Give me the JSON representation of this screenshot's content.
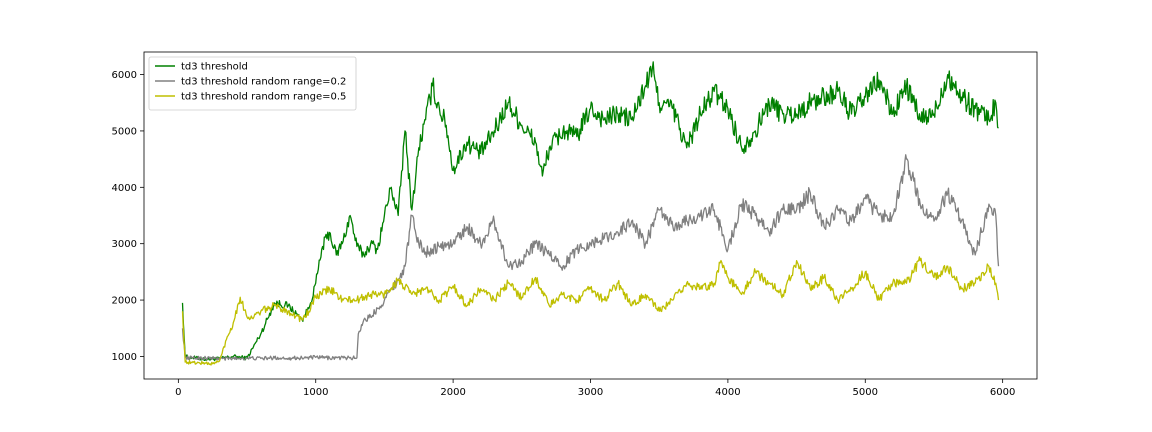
{
  "chart_data": {
    "type": "line",
    "title": "",
    "xlabel": "",
    "ylabel": "",
    "xlim": [
      -250,
      6250
    ],
    "ylim": [
      600,
      6400
    ],
    "xticks": [
      0,
      1000,
      2000,
      3000,
      4000,
      5000,
      6000
    ],
    "yticks": [
      1000,
      2000,
      3000,
      4000,
      5000,
      6000
    ],
    "grid": false,
    "legend_position": "top-left",
    "series": [
      {
        "name": "td3 threshold",
        "color": "#008000",
        "x": [
          30,
          50,
          100,
          200,
          300,
          400,
          500,
          600,
          700,
          800,
          900,
          950,
          1000,
          1050,
          1100,
          1150,
          1200,
          1250,
          1300,
          1350,
          1400,
          1450,
          1500,
          1550,
          1600,
          1650,
          1700,
          1750,
          1800,
          1850,
          1900,
          1950,
          2000,
          2100,
          2200,
          2300,
          2400,
          2500,
          2600,
          2650,
          2700,
          2800,
          2900,
          3000,
          3100,
          3200,
          3300,
          3400,
          3450,
          3500,
          3600,
          3700,
          3800,
          3900,
          4000,
          4100,
          4200,
          4300,
          4400,
          4500,
          4600,
          4700,
          4800,
          4900,
          5000,
          5100,
          5200,
          5300,
          5400,
          5500,
          5600,
          5700,
          5800,
          5900,
          5950,
          5970
        ],
        "y": [
          1950,
          1000,
          980,
          950,
          960,
          1000,
          970,
          1400,
          1950,
          1900,
          1650,
          1850,
          2300,
          2950,
          3200,
          2800,
          3050,
          3500,
          2950,
          2800,
          3000,
          2900,
          3500,
          4000,
          3500,
          5000,
          3600,
          4700,
          5200,
          5800,
          5400,
          5100,
          4300,
          4800,
          4600,
          5000,
          5500,
          5100,
          4800,
          4200,
          4700,
          5000,
          4900,
          5400,
          5200,
          5300,
          5200,
          5800,
          6100,
          5500,
          5400,
          4700,
          5300,
          5700,
          5400,
          4700,
          5000,
          5500,
          5300,
          5300,
          5500,
          5600,
          5700,
          5300,
          5600,
          5900,
          5300,
          5800,
          5200,
          5300,
          6000,
          5600,
          5400,
          5200,
          5500,
          5050
        ]
      },
      {
        "name": "td3 threshold random range=0.2",
        "color": "#808080",
        "x": [
          30,
          50,
          100,
          200,
          300,
          400,
          500,
          600,
          700,
          800,
          900,
          1000,
          1100,
          1200,
          1300,
          1310,
          1350,
          1400,
          1450,
          1500,
          1550,
          1600,
          1650,
          1700,
          1750,
          1800,
          1850,
          1900,
          2000,
          2100,
          2200,
          2300,
          2400,
          2500,
          2600,
          2700,
          2800,
          2900,
          3000,
          3100,
          3200,
          3300,
          3400,
          3500,
          3600,
          3700,
          3800,
          3900,
          4000,
          4100,
          4200,
          4300,
          4400,
          4500,
          4600,
          4700,
          4800,
          4900,
          5000,
          5100,
          5200,
          5300,
          5400,
          5500,
          5600,
          5700,
          5800,
          5900,
          5950,
          5970
        ],
        "y": [
          1500,
          980,
          970,
          975,
          960,
          965,
          970,
          965,
          975,
          970,
          975,
          985,
          975,
          975,
          975,
          1400,
          1650,
          1700,
          1850,
          2000,
          2200,
          2350,
          2600,
          3500,
          3000,
          2850,
          2900,
          2950,
          3000,
          3300,
          3000,
          3400,
          2600,
          2700,
          3000,
          2800,
          2600,
          2900,
          3000,
          3100,
          3200,
          3400,
          3000,
          3600,
          3300,
          3400,
          3500,
          3600,
          2900,
          3700,
          3500,
          3200,
          3600,
          3600,
          3900,
          3300,
          3600,
          3400,
          3800,
          3500,
          3500,
          4500,
          3700,
          3400,
          3900,
          3400,
          2800,
          3700,
          3500,
          2600
        ]
      },
      {
        "name": "td3 threshold random range=0.5",
        "color": "#bfbf00",
        "x": [
          30,
          50,
          100,
          200,
          250,
          300,
          350,
          400,
          450,
          500,
          550,
          600,
          700,
          800,
          900,
          950,
          1000,
          1100,
          1200,
          1300,
          1400,
          1500,
          1600,
          1700,
          1800,
          1900,
          2000,
          2100,
          2200,
          2300,
          2400,
          2500,
          2600,
          2700,
          2800,
          2900,
          3000,
          3100,
          3200,
          3300,
          3400,
          3500,
          3600,
          3700,
          3800,
          3900,
          3950,
          4000,
          4100,
          4200,
          4300,
          4400,
          4500,
          4600,
          4700,
          4800,
          4900,
          5000,
          5100,
          5200,
          5300,
          5400,
          5500,
          5600,
          5700,
          5800,
          5900,
          5950,
          5970
        ],
        "y": [
          1800,
          900,
          890,
          880,
          870,
          920,
          1300,
          1600,
          2050,
          1700,
          1700,
          1800,
          1900,
          1800,
          1650,
          1800,
          2050,
          2200,
          2000,
          2000,
          2100,
          2100,
          2350,
          2100,
          2200,
          2000,
          2250,
          1900,
          2200,
          2000,
          2300,
          2050,
          2400,
          1900,
          2100,
          2000,
          2200,
          2000,
          2300,
          1900,
          2100,
          1800,
          2000,
          2300,
          2200,
          2300,
          2700,
          2400,
          2100,
          2500,
          2300,
          2100,
          2700,
          2200,
          2400,
          2000,
          2200,
          2500,
          2000,
          2300,
          2300,
          2700,
          2400,
          2600,
          2200,
          2300,
          2600,
          2300,
          2000
        ]
      }
    ]
  }
}
